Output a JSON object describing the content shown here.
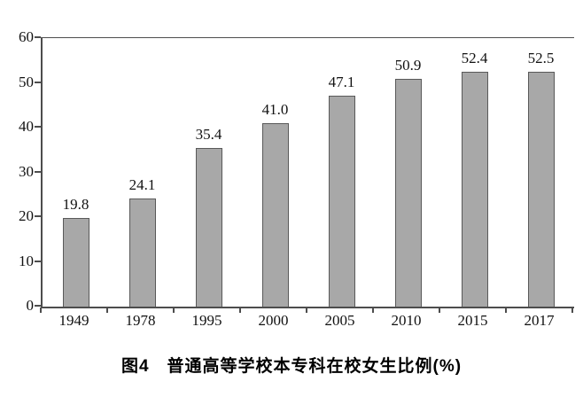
{
  "chart_data": {
    "type": "bar",
    "categories": [
      "1949",
      "1978",
      "1995",
      "2000",
      "2005",
      "2010",
      "2015",
      "2017"
    ],
    "values": [
      19.8,
      24.1,
      35.4,
      41.0,
      47.1,
      50.9,
      52.4,
      52.5
    ],
    "value_labels": [
      "19.8",
      "24.1",
      "35.4",
      "41.0",
      "47.1",
      "50.9",
      "52.4",
      "52.5"
    ],
    "title": "图4　普通高等学校本专科在校女生比例(%)",
    "xlabel": "",
    "ylabel": "",
    "ylim": [
      0,
      60
    ],
    "yticks": [
      0,
      10,
      20,
      30,
      40,
      50,
      60
    ],
    "grid": "off",
    "legend": "none",
    "bar_color": "#a8a8a8",
    "bar_border_color": "#595959"
  },
  "caption": {
    "text": "图4　普通高等学校本专科在校女生比例(%)"
  }
}
